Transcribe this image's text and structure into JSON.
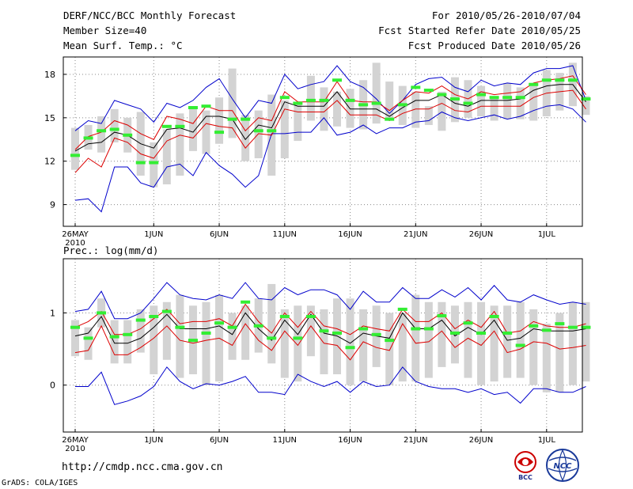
{
  "header": {
    "title": "DERF/NCC/BCC Monthly Forecast",
    "member_size": "Member Size=40",
    "variable_1": "Mean Surf. Temp.: °C",
    "period": "For 2010/05/26-2010/07/04",
    "start_date": "Fcst Started Refer Date 2010/05/25",
    "produced_date": "Fcst Produced Date 2010/05/26",
    "variable_2": "Prec.: log(mm/d)"
  },
  "footer": {
    "url": "http://cmdp.ncc.cma.gov.cn",
    "credit": "GrADS: COLA/IGES",
    "logo_left_text": "BCC",
    "logo_right_text": "NCC"
  },
  "colors": {
    "box": "#d3d3d3",
    "median": "#33ee33",
    "mean": "#000000",
    "spread": "#dd0000",
    "envelope": "#0000cc",
    "grid": "#888888"
  },
  "chart_data": [
    {
      "type": "line",
      "id": "temperature",
      "title": "Mean Surf. Temp.: °C",
      "x_labels": [
        "26MAY",
        "1JUN",
        "6JUN",
        "11JUN",
        "16JUN",
        "21JUN",
        "26JUN",
        "1JUL"
      ],
      "x_label_days": [
        1,
        7,
        12,
        17,
        22,
        27,
        32,
        37
      ],
      "x_sublabel": "2010",
      "y_ticks": [
        9,
        12,
        15,
        18
      ],
      "ylim": [
        7.5,
        19.2
      ],
      "days": 40,
      "series": {
        "box_low": [
          11.4,
          12.8,
          12.6,
          13.3,
          12.6,
          11.0,
          10.2,
          10.4,
          11.0,
          12.7,
          12.5,
          13.2,
          13.6,
          12.0,
          12.2,
          11.0,
          12.2,
          13.4,
          14.8,
          14.1,
          14.4,
          14.3,
          14.2,
          14.6,
          14.9,
          14.5,
          14.3,
          14.5,
          14.1,
          14.7,
          15.0,
          15.1,
          14.8,
          14.9,
          14.9,
          14.8,
          15.1,
          15.5,
          15.8,
          15.2
        ],
        "box_high": [
          14.3,
          14.5,
          15.1,
          15.6,
          15.0,
          15.4,
          13.3,
          14.2,
          15.3,
          15.7,
          15.5,
          16.4,
          18.4,
          15.2,
          15.5,
          16.6,
          16.2,
          16.0,
          17.9,
          17.1,
          16.8,
          17.0,
          17.6,
          18.8,
          17.5,
          17.2,
          16.8,
          15.8,
          16.8,
          17.8,
          17.6,
          17.2,
          16.5,
          17.4,
          17.1,
          17.4,
          18.3,
          18.1,
          18.8,
          16.5
        ],
        "median": [
          12.4,
          13.6,
          14.1,
          14.2,
          13.8,
          11.9,
          11.9,
          14.4,
          14.4,
          15.7,
          15.8,
          14.0,
          14.9,
          14.9,
          14.1,
          14.1,
          16.4,
          16.0,
          16.2,
          16.2,
          17.6,
          16.2,
          15.9,
          16.0,
          14.9,
          15.9,
          17.1,
          16.9,
          16.6,
          16.3,
          16.0,
          16.6,
          16.4,
          16.4,
          16.4,
          17.3,
          17.6,
          17.6,
          17.6,
          16.3
        ],
        "mean": [
          12.7,
          13.2,
          13.3,
          14.0,
          13.8,
          13.2,
          12.9,
          14.2,
          14.3,
          14.0,
          15.1,
          15.1,
          14.9,
          13.5,
          14.5,
          14.3,
          16.1,
          15.8,
          15.8,
          15.8,
          16.8,
          15.6,
          15.6,
          15.6,
          15.1,
          15.7,
          16.2,
          16.2,
          16.6,
          16.0,
          15.8,
          16.2,
          16.2,
          16.2,
          16.3,
          16.9,
          17.2,
          17.3,
          17.3,
          16.1
        ],
        "spread_high": [
          12.8,
          13.7,
          14.0,
          14.8,
          14.5,
          13.9,
          13.5,
          15.1,
          14.9,
          14.6,
          15.8,
          15.5,
          15.5,
          14.1,
          15.0,
          14.8,
          16.8,
          16.1,
          16.1,
          16.1,
          17.5,
          16.2,
          16.1,
          16.1,
          15.5,
          16.2,
          16.8,
          16.7,
          17.2,
          16.6,
          16.3,
          16.8,
          16.6,
          16.7,
          16.8,
          17.4,
          17.6,
          17.7,
          17.9,
          16.6
        ],
        "spread_low": [
          11.2,
          12.2,
          11.6,
          13.6,
          13.3,
          12.5,
          12.2,
          13.4,
          13.8,
          13.6,
          14.6,
          14.4,
          14.3,
          12.9,
          13.9,
          13.8,
          15.6,
          15.4,
          15.4,
          15.4,
          16.2,
          15.2,
          15.2,
          15.2,
          14.8,
          15.3,
          15.6,
          15.6,
          16.0,
          15.5,
          15.4,
          15.8,
          15.8,
          15.8,
          15.8,
          16.4,
          16.7,
          16.8,
          16.9,
          15.6
        ],
        "env_high": [
          14.1,
          14.8,
          14.6,
          16.2,
          15.9,
          15.6,
          14.7,
          16.0,
          15.7,
          16.2,
          17.1,
          17.7,
          16.3,
          15.0,
          16.2,
          16.0,
          18.0,
          17.0,
          17.3,
          17.5,
          18.6,
          17.5,
          17.1,
          16.3,
          15.3,
          16.2,
          17.3,
          17.7,
          17.8,
          17.1,
          16.8,
          17.6,
          17.2,
          17.4,
          17.3,
          18.1,
          18.4,
          18.4,
          18.6,
          16.2
        ],
        "env_low": [
          9.3,
          9.4,
          8.5,
          11.6,
          11.6,
          10.5,
          10.2,
          11.6,
          11.8,
          11.0,
          12.6,
          11.7,
          11.1,
          10.2,
          11.0,
          13.9,
          13.9,
          14.0,
          14.0,
          15.0,
          13.8,
          14.0,
          14.5,
          13.9,
          14.3,
          14.3,
          14.7,
          14.8,
          15.4,
          15.0,
          14.8,
          15.0,
          15.2,
          14.9,
          15.1,
          15.5,
          15.8,
          15.9,
          15.6,
          14.7
        ]
      }
    },
    {
      "type": "line",
      "id": "precipitation",
      "title": "Prec.: log(mm/d)",
      "x_labels": [
        "26MAY",
        "1JUN",
        "6JUN",
        "11JUN",
        "16JUN",
        "21JUN",
        "26JUN",
        "1JUL"
      ],
      "x_label_days": [
        1,
        7,
        12,
        17,
        22,
        27,
        32,
        37
      ],
      "x_sublabel": "2010",
      "y_ticks": [
        0,
        1
      ],
      "ylim": [
        -0.65,
        1.75
      ],
      "days": 40,
      "series": {
        "box_low": [
          0.4,
          0.35,
          0.8,
          0.3,
          0.3,
          0.45,
          0.15,
          0.35,
          0.1,
          0.15,
          0.0,
          0.05,
          0.35,
          0.35,
          0.45,
          0.3,
          0.1,
          0.05,
          0.4,
          0.15,
          0.15,
          0.0,
          0.05,
          0.25,
          0.0,
          0.05,
          0.05,
          0.1,
          0.25,
          0.3,
          0.1,
          0.0,
          0.05,
          0.1,
          0.1,
          0.0,
          -0.1,
          -0.1,
          0.0,
          0.05
        ],
        "box_high": [
          0.9,
          0.8,
          1.2,
          0.9,
          0.9,
          1.05,
          1.1,
          1.15,
          1.25,
          1.1,
          1.15,
          1.25,
          1.0,
          1.1,
          1.2,
          1.4,
          1.05,
          1.1,
          1.1,
          1.05,
          1.2,
          1.2,
          1.05,
          1.1,
          1.0,
          1.0,
          1.25,
          1.15,
          1.15,
          1.1,
          1.15,
          1.15,
          1.1,
          1.1,
          1.15,
          1.05,
          0.85,
          1.0,
          1.15,
          1.15
        ],
        "median": [
          0.8,
          0.65,
          1.0,
          0.67,
          0.7,
          0.9,
          0.95,
          1.02,
          0.8,
          0.62,
          0.72,
          0.86,
          0.8,
          1.15,
          0.82,
          0.65,
          0.95,
          0.65,
          0.95,
          0.75,
          0.72,
          0.52,
          0.78,
          0.7,
          0.62,
          1.05,
          0.78,
          0.78,
          0.96,
          0.72,
          0.86,
          0.72,
          0.95,
          0.72,
          0.55,
          0.82,
          0.76,
          0.85,
          0.8,
          0.8
        ],
        "mean": [
          0.68,
          0.72,
          0.95,
          0.58,
          0.58,
          0.65,
          0.8,
          0.98,
          0.78,
          0.78,
          0.78,
          0.82,
          0.7,
          1.0,
          0.78,
          0.62,
          0.9,
          0.7,
          0.98,
          0.72,
          0.68,
          0.58,
          0.72,
          0.68,
          0.65,
          1.0,
          0.78,
          0.78,
          0.9,
          0.68,
          0.8,
          0.7,
          0.9,
          0.62,
          0.65,
          0.78,
          0.75,
          0.75,
          0.75,
          0.78
        ],
        "spread_high": [
          0.8,
          0.88,
          1.02,
          0.7,
          0.7,
          0.78,
          0.92,
          1.05,
          0.85,
          0.88,
          0.88,
          0.92,
          0.82,
          1.12,
          0.88,
          0.72,
          1.0,
          0.8,
          1.02,
          0.82,
          0.78,
          0.7,
          0.82,
          0.78,
          0.75,
          1.05,
          0.88,
          0.88,
          1.0,
          0.78,
          0.9,
          0.8,
          1.02,
          0.72,
          0.75,
          0.88,
          0.82,
          0.8,
          0.8,
          0.85
        ],
        "spread_low": [
          0.45,
          0.48,
          0.82,
          0.42,
          0.42,
          0.52,
          0.65,
          0.82,
          0.62,
          0.58,
          0.62,
          0.65,
          0.55,
          0.85,
          0.62,
          0.48,
          0.75,
          0.55,
          0.82,
          0.58,
          0.55,
          0.35,
          0.6,
          0.52,
          0.48,
          0.85,
          0.58,
          0.6,
          0.75,
          0.52,
          0.65,
          0.55,
          0.75,
          0.45,
          0.5,
          0.6,
          0.58,
          0.5,
          0.52,
          0.55
        ],
        "env_high": [
          1.02,
          1.05,
          1.3,
          0.92,
          0.92,
          1.0,
          1.2,
          1.42,
          1.25,
          1.2,
          1.18,
          1.25,
          1.2,
          1.42,
          1.2,
          1.18,
          1.35,
          1.25,
          1.32,
          1.32,
          1.25,
          1.05,
          1.3,
          1.15,
          1.15,
          1.35,
          1.2,
          1.2,
          1.32,
          1.22,
          1.35,
          1.18,
          1.38,
          1.18,
          1.15,
          1.25,
          1.18,
          1.12,
          1.15,
          1.12
        ],
        "env_low": [
          -0.02,
          -0.02,
          0.18,
          -0.27,
          -0.22,
          -0.15,
          -0.02,
          0.25,
          0.05,
          -0.05,
          0.02,
          0.0,
          0.05,
          0.12,
          -0.1,
          -0.1,
          -0.13,
          0.15,
          0.05,
          -0.02,
          0.05,
          -0.1,
          0.05,
          -0.02,
          0.0,
          0.25,
          0.05,
          -0.02,
          -0.05,
          -0.05,
          -0.1,
          -0.05,
          -0.13,
          -0.1,
          -0.25,
          -0.05,
          -0.05,
          -0.1,
          -0.1,
          -0.02
        ]
      }
    }
  ]
}
